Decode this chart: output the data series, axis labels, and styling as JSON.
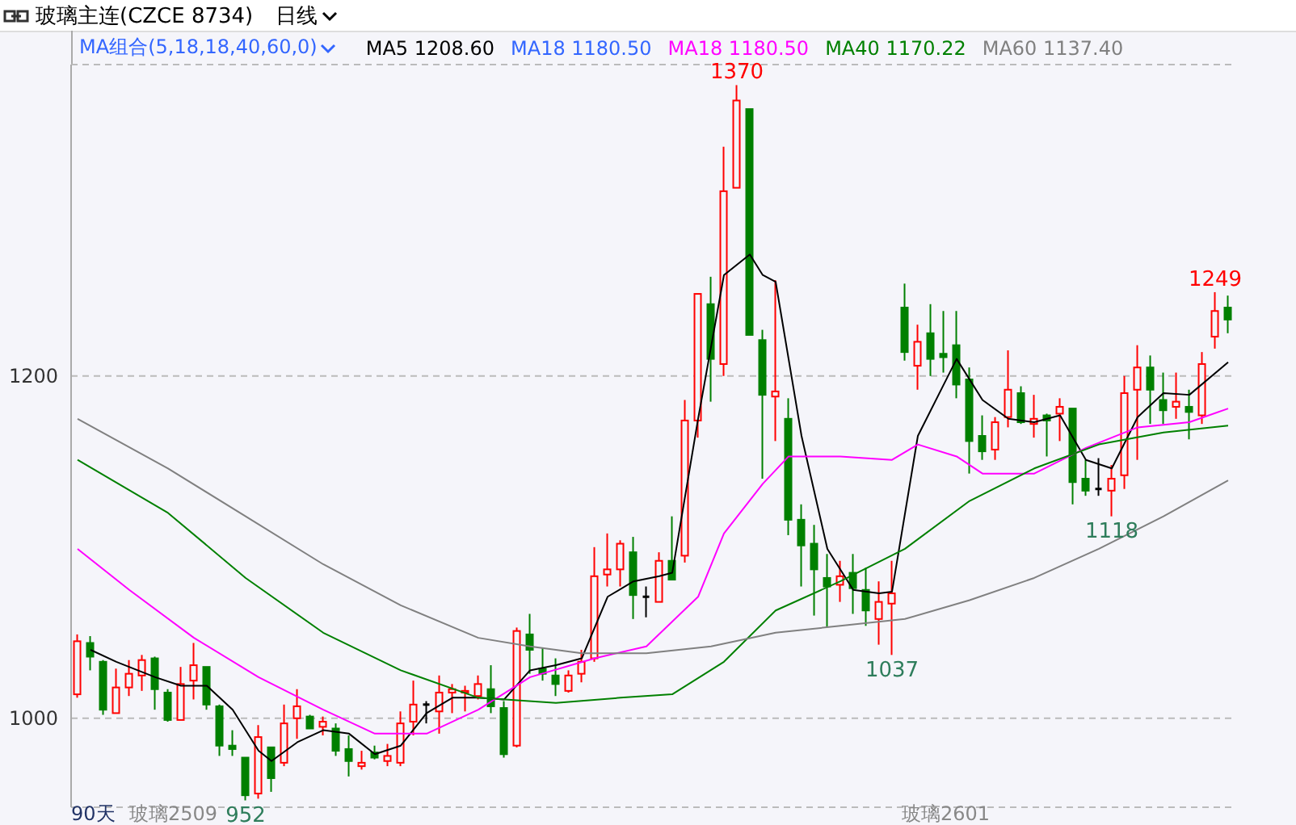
{
  "chart_data": {
    "type": "candlestick",
    "title": "玻璃主连(CZCE 8734)",
    "subtitle": "MA组合(5,18,18,40,60,0)",
    "categories": [
      null,
      null,
      null,
      null,
      null,
      null,
      null,
      null,
      null,
      null,
      null,
      null,
      null,
      null,
      null,
      null,
      null,
      null,
      null,
      null,
      null,
      null,
      null,
      null,
      null,
      null,
      null,
      null,
      null,
      null,
      null,
      null,
      null,
      null,
      null,
      null,
      null,
      null,
      null,
      null,
      null,
      null,
      null,
      null,
      null,
      null,
      null,
      null,
      null,
      null,
      null,
      null,
      null,
      null,
      null,
      null,
      null,
      null,
      null,
      null,
      null,
      null,
      null,
      null,
      null,
      null,
      null,
      null,
      null,
      null,
      null,
      null,
      null,
      null,
      null,
      null,
      null,
      null,
      null,
      null,
      null,
      null,
      null,
      null,
      null,
      null,
      null,
      null,
      null,
      null
    ],
    "ohlc": [
      [
        1014,
        1049,
        1012,
        1045
      ],
      [
        1044,
        1048,
        1028,
        1036
      ],
      [
        1033,
        1034,
        1002,
        1005
      ],
      [
        1003,
        1029,
        1003,
        1018
      ],
      [
        1018,
        1034,
        1013,
        1026
      ],
      [
        1025,
        1037,
        1016,
        1034
      ],
      [
        1035,
        1036,
        1005,
        1017
      ],
      [
        1015,
        1017,
        998,
        999
      ],
      [
        999,
        1030,
        999,
        1020
      ],
      [
        1022,
        1044,
        1011,
        1031
      ],
      [
        1030,
        1030,
        1005,
        1008
      ],
      [
        1007,
        1008,
        978,
        984
      ],
      [
        984,
        993,
        978,
        982
      ],
      [
        977,
        977,
        952,
        955
      ],
      [
        956,
        996,
        953,
        989
      ],
      [
        983,
        983,
        957,
        965
      ],
      [
        974,
        1008,
        972,
        997
      ],
      [
        1000,
        1017,
        988,
        1007
      ],
      [
        1001,
        1002,
        994,
        994
      ],
      [
        995,
        1001,
        990,
        998
      ],
      [
        994,
        997,
        978,
        981
      ],
      [
        982,
        990,
        966,
        975
      ],
      [
        972,
        981,
        970,
        974
      ],
      [
        980,
        984,
        976,
        977
      ],
      [
        975,
        985,
        972,
        978
      ],
      [
        974,
        1004,
        972,
        997
      ],
      [
        998,
        1022,
        990,
        1008
      ],
      [
        1008,
        1010,
        997,
        1008
      ],
      [
        1004,
        1025,
        991,
        1015
      ],
      [
        1015,
        1020,
        1003,
        1017
      ],
      [
        1015,
        1019,
        1004,
        1016
      ],
      [
        1013,
        1025,
        1011,
        1020
      ],
      [
        1017,
        1031,
        1003,
        1007
      ],
      [
        1006,
        1010,
        977,
        979
      ],
      [
        984,
        1053,
        983,
        1051
      ],
      [
        1049,
        1061,
        1026,
        1040
      ],
      [
        1029,
        1041,
        1022,
        1026
      ],
      [
        1025,
        1035,
        1013,
        1020
      ],
      [
        1016,
        1028,
        1015,
        1025
      ],
      [
        1026,
        1040,
        1021,
        1033
      ],
      [
        1035,
        1100,
        1033,
        1083
      ],
      [
        1084,
        1108,
        1077,
        1087
      ],
      [
        1087,
        1104,
        1077,
        1102
      ],
      [
        1097,
        1106,
        1058,
        1072
      ],
      [
        1071,
        1077,
        1059,
        1071
      ],
      [
        1068,
        1097,
        1068,
        1092
      ],
      [
        1092,
        1118,
        1081,
        1081
      ],
      [
        1095,
        1186,
        1091,
        1174
      ],
      [
        1174,
        1248,
        1164,
        1248
      ],
      [
        1242,
        1258,
        1185,
        1210
      ],
      [
        1207,
        1334,
        1200,
        1308
      ],
      [
        1310,
        1370,
        1310,
        1361
      ],
      [
        1356,
        1356,
        1224,
        1224
      ],
      [
        1221,
        1227,
        1140,
        1189
      ],
      [
        1188,
        1256,
        1162,
        1191
      ],
      [
        1175,
        1187,
        1107,
        1116
      ],
      [
        1116,
        1125,
        1077,
        1101
      ],
      [
        1102,
        1113,
        1060,
        1087
      ],
      [
        1082,
        1096,
        1053,
        1077
      ],
      [
        1078,
        1092,
        1068,
        1083
      ],
      [
        1085,
        1096,
        1061,
        1076
      ],
      [
        1075,
        1088,
        1054,
        1063
      ],
      [
        1058,
        1080,
        1043,
        1068
      ],
      [
        1067,
        1092,
        1037,
        1073
      ],
      [
        1240,
        1254,
        1209,
        1214
      ],
      [
        1206,
        1230,
        1192,
        1220
      ],
      [
        1225,
        1242,
        1200,
        1210
      ],
      [
        1213,
        1238,
        1202,
        1211
      ],
      [
        1218,
        1238,
        1187,
        1195
      ],
      [
        1198,
        1205,
        1143,
        1162
      ],
      [
        1165,
        1177,
        1151,
        1156
      ],
      [
        1157,
        1176,
        1151,
        1173
      ],
      [
        1176,
        1215,
        1170,
        1192
      ],
      [
        1190,
        1194,
        1172,
        1173
      ],
      [
        1172,
        1189,
        1164,
        1175
      ],
      [
        1177,
        1178,
        1153,
        1174
      ],
      [
        1178,
        1187,
        1162,
        1182
      ],
      [
        1181,
        1181,
        1125,
        1138
      ],
      [
        1140,
        1151,
        1130,
        1133
      ],
      [
        1134,
        1152,
        1130,
        1134
      ],
      [
        1133,
        1148,
        1118,
        1140
      ],
      [
        1142,
        1200,
        1134,
        1190
      ],
      [
        1192,
        1218,
        1151,
        1205
      ],
      [
        1205,
        1212,
        1172,
        1192
      ],
      [
        1186,
        1202,
        1172,
        1180
      ],
      [
        1182,
        1202,
        1175,
        1185
      ],
      [
        1182,
        1192,
        1163,
        1179
      ],
      [
        1177,
        1214,
        1172,
        1207
      ],
      [
        1223,
        1249,
        1216,
        1238
      ],
      [
        1240,
        1247,
        1225,
        1233
      ]
    ],
    "colors": [
      "#ff0000",
      "#008000",
      "#008000",
      "#ff0000",
      "#ff0000",
      "#ff0000",
      "#008000",
      "#008000",
      "#ff0000",
      "#ff0000",
      "#008000",
      "#008000",
      "#008000",
      "#008000",
      "#ff0000",
      "#008000",
      "#ff0000",
      "#ff0000",
      "#008000",
      "#ff0000",
      "#008000",
      "#008000",
      "#ff0000",
      "#008000",
      "#ff0000",
      "#ff0000",
      "#ff0000",
      "#000000",
      "#ff0000",
      "#ff0000",
      "#ff0000",
      "#ff0000",
      "#008000",
      "#008000",
      "#ff0000",
      "#008000",
      "#008000",
      "#008000",
      "#ff0000",
      "#ff0000",
      "#ff0000",
      "#ff0000",
      "#ff0000",
      "#008000",
      "#000000",
      "#ff0000",
      "#008000",
      "#ff0000",
      "#ff0000",
      "#008000",
      "#ff0000",
      "#ff0000",
      "#008000",
      "#008000",
      "#ff0000",
      "#008000",
      "#008000",
      "#008000",
      "#008000",
      "#ff0000",
      "#008000",
      "#008000",
      "#ff0000",
      "#ff0000",
      "#008000",
      "#ff0000",
      "#008000",
      "#008000",
      "#008000",
      "#008000",
      "#008000",
      "#ff0000",
      "#ff0000",
      "#008000",
      "#ff0000",
      "#008000",
      "#ff0000",
      "#008000",
      "#008000",
      "#000000",
      "#ff0000",
      "#ff0000",
      "#ff0000",
      "#008000",
      "#008000",
      "#ff0000",
      "#008000",
      "#ff0000",
      "#ff0000",
      "#008000"
    ],
    "series": [
      {
        "name": "MA5 1208.60",
        "type": "line",
        "color": "#000000",
        "values": [
          null,
          1040,
          null,
          1033,
          null,
          null,
          1024,
          null,
          1019,
          null,
          1019,
          null,
          1005,
          null,
          981,
          975,
          null,
          986,
          null,
          993,
          null,
          991,
          null,
          979,
          null,
          984,
          null,
          1003,
          null,
          1012,
          null,
          1012,
          null,
          1011,
          null,
          1028,
          null,
          1031,
          null,
          1035,
          null,
          1071,
          null,
          1080,
          null,
          1083,
          1085,
          null,
          1175,
          null,
          1259,
          null,
          1271,
          1259,
          1255,
          null,
          1165,
          null,
          1099,
          null,
          1075,
          null,
          1073,
          1074,
          null,
          1165,
          null,
          1195,
          1210,
          null,
          1186,
          null,
          1175,
          null,
          1173,
          null,
          1177,
          null,
          1151,
          null,
          1146,
          null,
          1176,
          null,
          1190,
          null,
          1189,
          null,
          null,
          1208
        ]
      },
      {
        "name": "MA18 1180.50",
        "type": "line",
        "color": "#3366ff",
        "values": [
          null,
          null,
          null,
          null,
          null,
          null,
          null,
          null,
          null,
          null,
          null,
          null,
          null,
          null,
          null,
          null,
          null,
          null,
          null,
          null,
          null,
          null,
          null,
          null,
          null,
          null,
          null,
          null,
          null,
          null,
          null,
          null,
          null,
          null,
          null,
          null,
          null,
          null,
          null,
          null,
          null,
          null,
          null,
          null,
          null,
          null,
          null,
          null,
          null,
          null,
          null,
          null,
          null,
          null,
          null,
          null,
          null,
          null,
          null,
          null,
          null,
          null,
          null,
          null,
          null,
          null,
          null,
          null,
          null,
          null,
          null,
          null,
          null,
          null,
          null,
          null,
          null,
          null,
          null,
          null,
          null,
          null,
          null,
          null,
          null,
          null,
          null,
          null,
          null,
          null
        ]
      },
      {
        "name": "MA18 1180.50",
        "type": "line",
        "color": "#ff00ff",
        "values": [
          1099,
          null,
          null,
          null,
          1075,
          null,
          null,
          null,
          null,
          1047,
          null,
          null,
          null,
          null,
          1024,
          null,
          null,
          null,
          null,
          1005,
          null,
          null,
          null,
          991,
          null,
          null,
          null,
          991,
          null,
          null,
          null,
          1005,
          null,
          null,
          null,
          1024,
          null,
          null,
          null,
          null,
          1035,
          null,
          null,
          null,
          1042,
          null,
          null,
          null,
          1071,
          null,
          1108,
          null,
          null,
          1137,
          null,
          1153,
          null,
          null,
          null,
          1153,
          null,
          null,
          null,
          1151,
          null,
          1160,
          null,
          null,
          1153,
          null,
          1143,
          null,
          null,
          null,
          1143,
          null,
          null,
          null,
          1158,
          null,
          null,
          null,
          1170,
          null,
          null,
          null,
          1173,
          null,
          null,
          1181
        ]
      },
      {
        "name": "MA40 1170.22",
        "type": "line",
        "color": "#008000",
        "values": [
          1151,
          null,
          null,
          null,
          null,
          null,
          null,
          1120,
          null,
          null,
          null,
          null,
          null,
          1082,
          null,
          null,
          null,
          null,
          null,
          1050,
          null,
          null,
          null,
          null,
          null,
          1028,
          null,
          null,
          null,
          null,
          null,
          1012,
          null,
          null,
          null,
          null,
          null,
          1009,
          null,
          null,
          null,
          null,
          1012,
          null,
          null,
          null,
          1014,
          null,
          null,
          null,
          1033,
          null,
          null,
          null,
          1063,
          null,
          null,
          null,
          null,
          1080,
          null,
          null,
          null,
          null,
          1099,
          null,
          null,
          null,
          null,
          1127,
          null,
          null,
          null,
          null,
          1146,
          null,
          null,
          null,
          null,
          1160,
          null,
          null,
          null,
          null,
          1167,
          null,
          null,
          null,
          null,
          1171
        ]
      },
      {
        "name": "MA60 1137.40",
        "type": "line",
        "color": "#808080",
        "values": [
          1175,
          null,
          null,
          null,
          null,
          null,
          null,
          1146,
          null,
          null,
          null,
          null,
          null,
          1118,
          null,
          null,
          null,
          null,
          null,
          1090,
          null,
          null,
          null,
          null,
          null,
          1066,
          null,
          null,
          null,
          null,
          null,
          1047,
          null,
          null,
          null,
          1042,
          null,
          null,
          null,
          1038,
          null,
          null,
          null,
          null,
          1038,
          null,
          null,
          null,
          null,
          1042,
          null,
          null,
          null,
          null,
          1050,
          null,
          null,
          null,
          null,
          1054,
          null,
          null,
          null,
          null,
          1058,
          null,
          null,
          null,
          null,
          1069,
          null,
          null,
          null,
          null,
          1082,
          null,
          null,
          null,
          null,
          1099,
          null,
          null,
          null,
          null,
          1118,
          null,
          null,
          null,
          null,
          1139
        ]
      }
    ],
    "ylim": [
      948,
      1382
    ],
    "yticks": [
      1000,
      1200
    ],
    "grid": "y",
    "legend": "top",
    "tick_labels": "y",
    "annotations": [
      "日线",
      "90天",
      "玻璃2509",
      "玻璃2601",
      {
        "text": "1370",
        "y": 1370
      },
      {
        "text": "952",
        "y": 952
      },
      {
        "text": "1037",
        "y": 1037
      },
      {
        "text": "1118",
        "y": 1118
      },
      {
        "text": "1249",
        "y": 1249
      }
    ]
  }
}
